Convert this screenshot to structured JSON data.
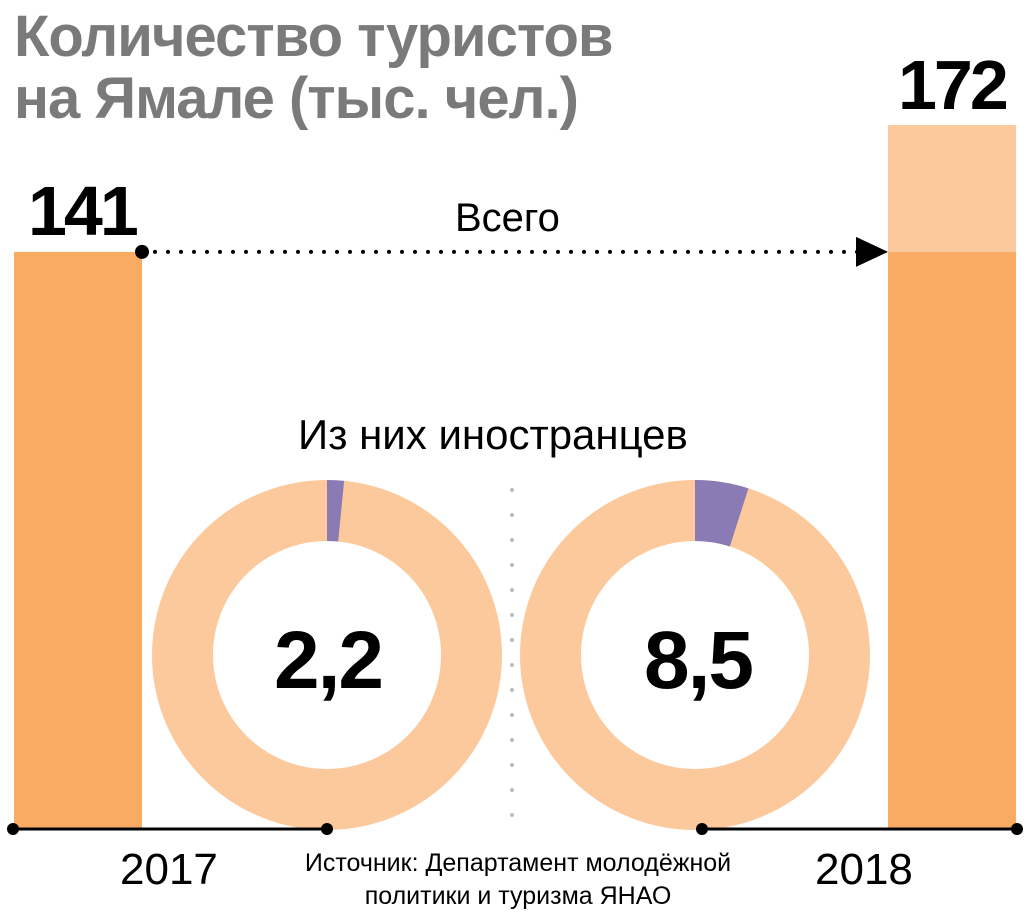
{
  "title_line1": "Количество туристов",
  "title_line2": "на Ямале (тыс. чел.)",
  "total_label": "Всего",
  "foreign_label": "Из них иностранцев",
  "source": "Источник: Департамент  молодёжной политики и туризма ЯНАО",
  "colors": {
    "title": "#7a7a7a",
    "bar_2017": "#f9ab64",
    "bar_2018_base": "#f9ab64",
    "bar_2018_increase": "#fcc99c",
    "donut_rest": "#fcc99c",
    "donut_foreign": "#8b7bb5",
    "text": "#000000"
  },
  "chart_data": [
    {
      "type": "bar",
      "categories": [
        "2017",
        "2018"
      ],
      "values": [
        141,
        172
      ],
      "value_labels": [
        "141",
        "172"
      ],
      "ylim": [
        0,
        180
      ],
      "annotation": "Всего"
    },
    {
      "type": "pie",
      "subtitle": "Из них иностранцев",
      "category": "2017",
      "center_label": "2,2",
      "foreign": 2.2,
      "total": 141
    },
    {
      "type": "pie",
      "subtitle": "Из них иностранцев",
      "category": "2018",
      "center_label": "8,5",
      "foreign": 8.5,
      "total": 172
    }
  ]
}
